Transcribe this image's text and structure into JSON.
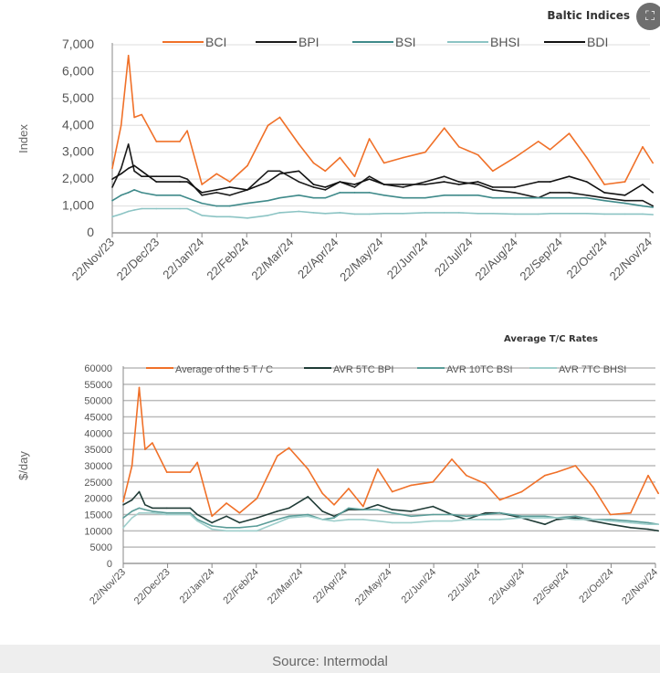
{
  "chart_data": [
    {
      "type": "line",
      "title": "Baltic Indices",
      "ylabel": "Index",
      "xlabel": "",
      "ylim": [
        0,
        7000
      ],
      "yticks": [
        "0",
        "1,000",
        "2,000",
        "3,000",
        "4,000",
        "5,000",
        "6,000",
        "7,000"
      ],
      "ytick_values": [
        0,
        1000,
        2000,
        3000,
        4000,
        5000,
        6000,
        7000
      ],
      "xticks": [
        "22/Nov/23",
        "22/Dec/23",
        "22/Jan/24",
        "22/Feb/24",
        "22/Mar/24",
        "22/Apr/24",
        "22/May/24",
        "22/Jun/24",
        "22/Jul/24",
        "22/Aug/24",
        "22/Sep/24",
        "22/Oct/24",
        "22/Nov/24"
      ],
      "grid": true,
      "legend": "top",
      "x": [
        "2023-11-22",
        "2023-11-28",
        "2023-12-03",
        "2023-12-07",
        "2023-12-12",
        "2023-12-22",
        "2024-01-07",
        "2024-01-12",
        "2024-01-22",
        "2024-02-01",
        "2024-02-10",
        "2024-02-22",
        "2024-03-07",
        "2024-03-15",
        "2024-03-28",
        "2024-04-07",
        "2024-04-15",
        "2024-04-25",
        "2024-05-05",
        "2024-05-15",
        "2024-05-25",
        "2024-06-07",
        "2024-06-22",
        "2024-07-05",
        "2024-07-15",
        "2024-07-28",
        "2024-08-07",
        "2024-08-22",
        "2024-09-07",
        "2024-09-15",
        "2024-09-28",
        "2024-10-10",
        "2024-10-22",
        "2024-11-05",
        "2024-11-17",
        "2024-11-24"
      ],
      "series": [
        {
          "name": "BCI",
          "color": "#f07028",
          "values": [
            2400,
            4000,
            6600,
            4300,
            4400,
            3400,
            3400,
            3800,
            1800,
            2200,
            1900,
            2500,
            4000,
            4300,
            3300,
            2600,
            2300,
            2800,
            2100,
            3500,
            2600,
            2800,
            3000,
            3900,
            3200,
            2900,
            2300,
            2800,
            3400,
            3100,
            3700,
            2800,
            1800,
            1900,
            3200,
            2600
          ]
        },
        {
          "name": "BPI",
          "color": "#1a1a1a",
          "values": [
            1700,
            2400,
            3300,
            2300,
            2100,
            2100,
            2100,
            2000,
            1400,
            1500,
            1400,
            1600,
            2300,
            2300,
            1900,
            1700,
            1600,
            1900,
            1700,
            2100,
            1800,
            1700,
            1900,
            2100,
            1900,
            1800,
            1600,
            1500,
            1300,
            1500,
            1500,
            1400,
            1300,
            1200,
            1200,
            1000
          ]
        },
        {
          "name": "BSI",
          "color": "#3f8a8a",
          "values": [
            1200,
            1400,
            1500,
            1600,
            1500,
            1400,
            1400,
            1300,
            1100,
            1000,
            1000,
            1100,
            1200,
            1300,
            1400,
            1300,
            1300,
            1500,
            1500,
            1500,
            1400,
            1300,
            1300,
            1400,
            1400,
            1400,
            1300,
            1300,
            1300,
            1300,
            1300,
            1300,
            1200,
            1100,
            1000,
            950
          ]
        },
        {
          "name": "BHSI",
          "color": "#8cc4c4",
          "values": [
            600,
            700,
            800,
            850,
            900,
            900,
            900,
            900,
            650,
            600,
            600,
            550,
            650,
            750,
            800,
            750,
            720,
            750,
            700,
            700,
            720,
            720,
            750,
            750,
            750,
            720,
            720,
            700,
            700,
            720,
            720,
            720,
            700,
            700,
            700,
            680
          ]
        },
        {
          "name": "BDI",
          "color": "#111111",
          "values": [
            2000,
            2200,
            2400,
            2500,
            2300,
            1900,
            1900,
            1900,
            1500,
            1600,
            1700,
            1600,
            1900,
            2200,
            2300,
            1800,
            1700,
            1900,
            1800,
            2000,
            1800,
            1800,
            1800,
            1900,
            1800,
            1900,
            1700,
            1700,
            1900,
            1900,
            2100,
            1900,
            1500,
            1400,
            1800,
            1500
          ]
        }
      ]
    },
    {
      "type": "line",
      "title": "Average T/C Rates",
      "ylabel": "$/day",
      "xlabel": "",
      "ylim": [
        0,
        60000
      ],
      "yticks": [
        "0",
        "5000",
        "10000",
        "15000",
        "20000",
        "25000",
        "30000",
        "35000",
        "40000",
        "45000",
        "50000",
        "55000",
        "60000"
      ],
      "ytick_values": [
        0,
        5000,
        10000,
        15000,
        20000,
        25000,
        30000,
        35000,
        40000,
        45000,
        50000,
        55000,
        60000
      ],
      "xticks": [
        "22/Nov/23",
        "22/Dec/23",
        "22/Jan/24",
        "22/Feb/24",
        "22/Mar/24",
        "22/Apr/24",
        "22/May/24",
        "22/Jun/24",
        "22/Jul/24",
        "22/Aug/24",
        "22/Sep/24",
        "22/Oct/24",
        "22/Nov/24"
      ],
      "grid": true,
      "legend": "top",
      "x": [
        "2023-11-22",
        "2023-11-28",
        "2023-12-03",
        "2023-12-07",
        "2023-12-12",
        "2023-12-22",
        "2024-01-07",
        "2024-01-12",
        "2024-01-22",
        "2024-02-01",
        "2024-02-10",
        "2024-02-22",
        "2024-03-07",
        "2024-03-15",
        "2024-03-28",
        "2024-04-07",
        "2024-04-15",
        "2024-04-25",
        "2024-05-05",
        "2024-05-15",
        "2024-05-25",
        "2024-06-07",
        "2024-06-22",
        "2024-07-05",
        "2024-07-15",
        "2024-07-28",
        "2024-08-07",
        "2024-08-22",
        "2024-09-07",
        "2024-09-15",
        "2024-09-28",
        "2024-10-10",
        "2024-10-22",
        "2024-11-05",
        "2024-11-17",
        "2024-11-24"
      ],
      "series": [
        {
          "name": "Average of the 5 T / C",
          "color": "#f07028",
          "values": [
            19000,
            30000,
            54000,
            35000,
            37000,
            28000,
            28000,
            31000,
            14500,
            18500,
            15500,
            20000,
            33000,
            35500,
            29000,
            21500,
            18000,
            23000,
            17500,
            29000,
            22000,
            24000,
            25000,
            32000,
            27000,
            24500,
            19500,
            22000,
            27000,
            28000,
            30000,
            23500,
            15000,
            15500,
            27000,
            21500
          ]
        },
        {
          "name": "AVR 5TC BPI",
          "color": "#1f3b36",
          "values": [
            18000,
            19500,
            22000,
            18000,
            17000,
            17000,
            17000,
            15000,
            12500,
            14500,
            12500,
            14000,
            16000,
            17000,
            20500,
            16000,
            14500,
            16500,
            16500,
            18000,
            16500,
            16000,
            17500,
            15000,
            13500,
            15500,
            15500,
            14000,
            12000,
            13500,
            14000,
            13000,
            12000,
            11000,
            10500,
            10000
          ]
        },
        {
          "name": "AVR 10TC BSI",
          "color": "#5a9c98",
          "values": [
            14000,
            16000,
            17000,
            16500,
            16000,
            15500,
            15500,
            13500,
            11500,
            11000,
            11000,
            11500,
            13500,
            14500,
            15000,
            13500,
            14000,
            17000,
            16500,
            16500,
            15500,
            14500,
            15000,
            15000,
            14500,
            15000,
            15500,
            14500,
            14500,
            14000,
            14500,
            13500,
            13500,
            13000,
            12500,
            12000
          ]
        },
        {
          "name": "AVR 7TC BHSI",
          "color": "#9fcfcc",
          "values": [
            11000,
            14000,
            15500,
            15500,
            15500,
            15000,
            15000,
            13000,
            10500,
            10000,
            10000,
            10000,
            12500,
            14000,
            14500,
            13500,
            13000,
            13500,
            13500,
            13000,
            12500,
            12500,
            13000,
            13000,
            13500,
            13500,
            13500,
            14000,
            14000,
            14000,
            13500,
            13500,
            13000,
            12500,
            12000,
            12000
          ]
        }
      ]
    }
  ],
  "source": "Source: Intermodal",
  "expand_icon": "expand-icon"
}
